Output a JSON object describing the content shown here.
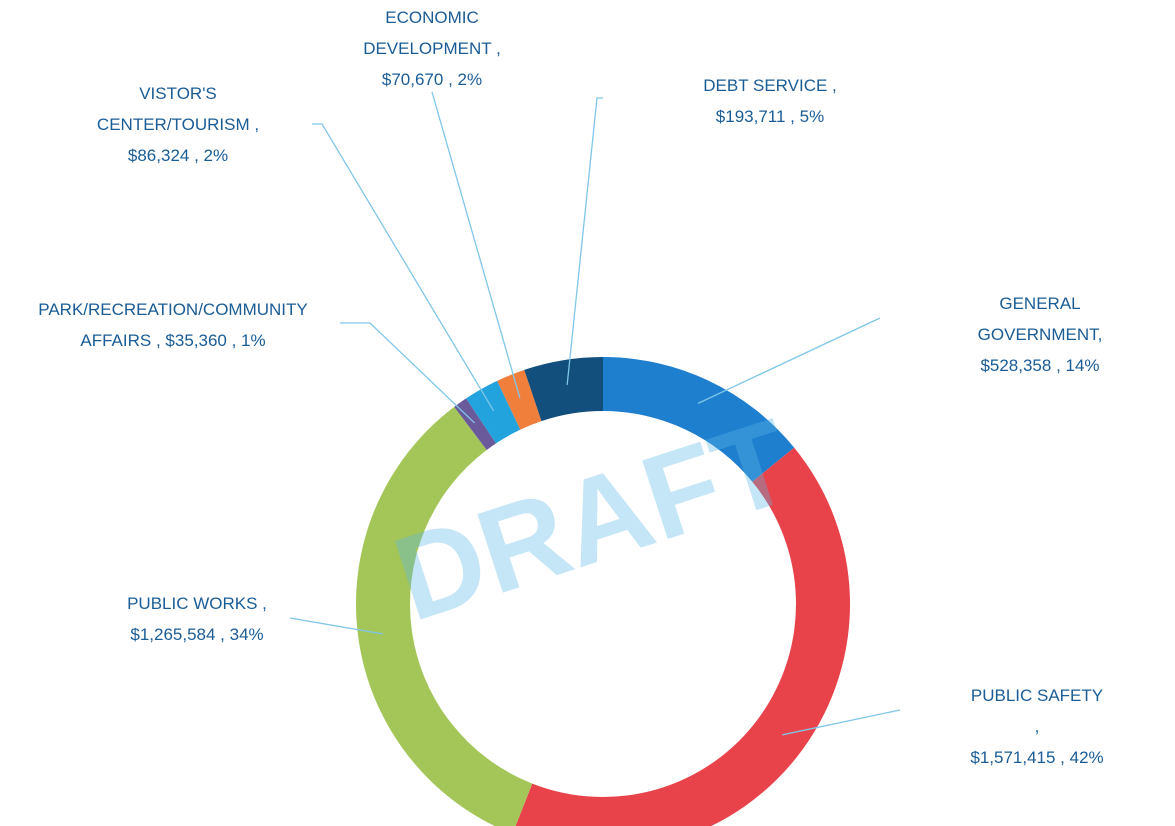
{
  "chart_data": {
    "type": "donut",
    "watermark": "DRAFT",
    "categories": [
      "GENERAL GOVERNMENT",
      "PUBLIC SAFETY",
      "PUBLIC WORKS",
      "PARK/RECREATION/COMMUNITY AFFAIRS",
      "VISTOR'S CENTER/TOURISM",
      "ECONOMIC DEVELOPMENT",
      "DEBT SERVICE"
    ],
    "labels": [
      "GENERAL GOVERNMENT,\n$528,358 , 14%",
      "PUBLIC SAFETY ,\n$1,571,415 , 42%",
      "PUBLIC WORKS ,\n$1,265,584 , 34%",
      "PARK/RECREATION/COMMUNITY\nAFFAIRS ,  $35,360 , 1%",
      "VISTOR'S\nCENTER/TOURISM ,\n$86,324 , 2%",
      "ECONOMIC\nDEVELOPMENT ,\n$70,670 , 2%",
      "DEBT SERVICE ,\n$193,711 , 5%"
    ],
    "values": [
      528358,
      1571415,
      1265584,
      35360,
      86324,
      70670,
      193711
    ],
    "colors": [
      "#1f7fcf",
      "#e8424a",
      "#a4c659",
      "#6a5a9c",
      "#22a3dd",
      "#f07f3c",
      "#124f7c"
    ]
  }
}
